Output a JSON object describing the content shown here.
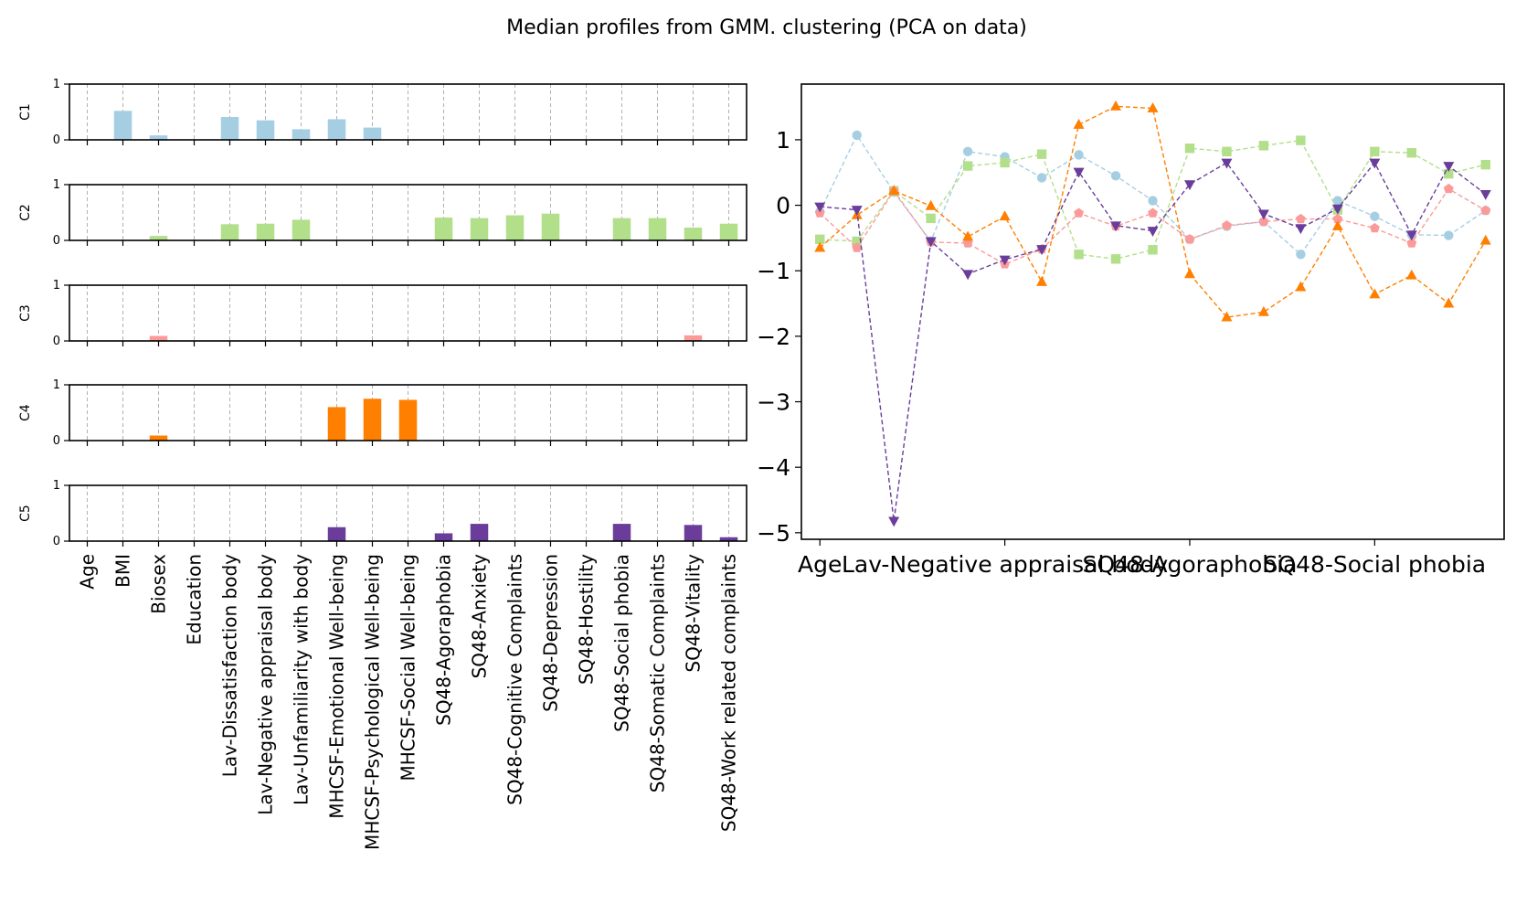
{
  "figure": {
    "title": "Median profiles from GMM. clustering (PCA on data)"
  },
  "chart_data": [
    {
      "type": "bar",
      "panel": "left-stacked",
      "categories": [
        "Age",
        "BMI",
        "Biosex",
        "Education",
        "Lav-Dissatisfaction body",
        "Lav-Negative appraisal body",
        "Lav-Unfamiliarity with body",
        "MHCSF-Emotional Well-being",
        "MHCSF-Psychological Well-being",
        "MHCSF-Social Well-being",
        "SQ48-Agoraphobia",
        "SQ48-Anxiety",
        "SQ48-Cognitive Complaints",
        "SQ48-Depression",
        "SQ48-Hostility",
        "SQ48-Social phobia",
        "SQ48-Somatic Complaints",
        "SQ48-Vitality",
        "SQ48-Work related complaints"
      ],
      "ylim": [
        0,
        1
      ],
      "yticks": [
        "0",
        "1"
      ],
      "grid": "vertical dashed",
      "series": [
        {
          "name": "C1",
          "color": "#a6cee3",
          "values": [
            0,
            0.52,
            0.08,
            0,
            0.41,
            0.35,
            0.19,
            0.37,
            0.22,
            0,
            0,
            0,
            0,
            0,
            0,
            0,
            0,
            0,
            0
          ]
        },
        {
          "name": "C2",
          "color": "#b2df8a",
          "values": [
            0,
            0,
            0.08,
            0,
            0.29,
            0.3,
            0.37,
            0,
            0,
            0,
            0.41,
            0.4,
            0.45,
            0.48,
            0,
            0.4,
            0.4,
            0.23,
            0.3
          ]
        },
        {
          "name": "C3",
          "color": "#fb9a99",
          "values": [
            0,
            0,
            0.09,
            0,
            0,
            0,
            0,
            0,
            0,
            0,
            0,
            0,
            0,
            0,
            0,
            0,
            0,
            0.1,
            0
          ]
        },
        {
          "name": "C4",
          "color": "#ff7f00",
          "values": [
            0,
            0,
            0.09,
            0,
            0,
            0,
            0,
            0.6,
            0.75,
            0.73,
            0,
            0,
            0,
            0,
            0,
            0,
            0,
            0,
            0
          ]
        },
        {
          "name": "C5",
          "color": "#6a3d9a",
          "values": [
            0,
            0,
            0,
            0,
            0,
            0,
            0,
            0.25,
            0,
            0,
            0.14,
            0.31,
            0,
            0,
            0,
            0.31,
            0,
            0.29,
            0.07
          ]
        }
      ]
    },
    {
      "type": "line",
      "panel": "right",
      "x_count": 19,
      "xlim": [
        -0.5,
        18.5
      ],
      "ylim": [
        -5.1,
        1.85
      ],
      "yticks": [
        1,
        0,
        -1,
        -2,
        -3,
        -4,
        -5
      ],
      "ytick_labels": [
        "1",
        "0",
        "−1",
        "−2",
        "−3",
        "−4",
        "−5"
      ],
      "xticks": [
        0,
        5,
        10,
        15
      ],
      "xtick_labels": [
        "Age",
        "Lav-Negative appraisal body",
        "SQ48-Agoraphobia",
        "SQ48-Social phobia"
      ],
      "line_style": "dashed",
      "series": [
        {
          "color": "#a6cee3",
          "marker": "circle",
          "values": [
            -0.1,
            1.07,
            0.2,
            -0.55,
            0.82,
            0.74,
            0.42,
            0.77,
            0.45,
            0.07,
            -0.52,
            -0.32,
            -0.25,
            -0.75,
            0.07,
            -0.17,
            -0.45,
            -0.46,
            -0.08
          ]
        },
        {
          "color": "#b2df8a",
          "marker": "square",
          "values": [
            -0.52,
            -0.55,
            0.22,
            -0.2,
            0.6,
            0.65,
            0.78,
            -0.75,
            -0.82,
            -0.68,
            0.87,
            0.82,
            0.91,
            0.99,
            -0.07,
            0.82,
            0.8,
            0.48,
            0.62
          ]
        },
        {
          "color": "#fb9a99",
          "marker": "pentagon",
          "values": [
            -0.12,
            -0.65,
            0.22,
            -0.56,
            -0.58,
            -0.9,
            -0.67,
            -0.12,
            -0.32,
            -0.12,
            -0.52,
            -0.31,
            -0.25,
            -0.21,
            -0.21,
            -0.35,
            -0.58,
            0.25,
            -0.08
          ]
        },
        {
          "color": "#ff7f00",
          "marker": "triangle-up",
          "values": [
            -0.65,
            -0.15,
            0.22,
            -0.01,
            -0.48,
            -0.17,
            -1.17,
            1.23,
            1.51,
            1.48,
            -1.05,
            -1.71,
            -1.63,
            -1.25,
            -0.32,
            -1.36,
            -1.07,
            -1.5,
            -0.54
          ]
        },
        {
          "color": "#6a3d9a",
          "marker": "triangle-down",
          "values": [
            -0.02,
            -0.07,
            -4.82,
            -0.55,
            -1.05,
            -0.83,
            -0.67,
            0.51,
            -0.31,
            -0.39,
            0.32,
            0.65,
            -0.13,
            -0.35,
            -0.05,
            0.65,
            -0.45,
            0.6,
            0.17
          ]
        }
      ]
    }
  ]
}
